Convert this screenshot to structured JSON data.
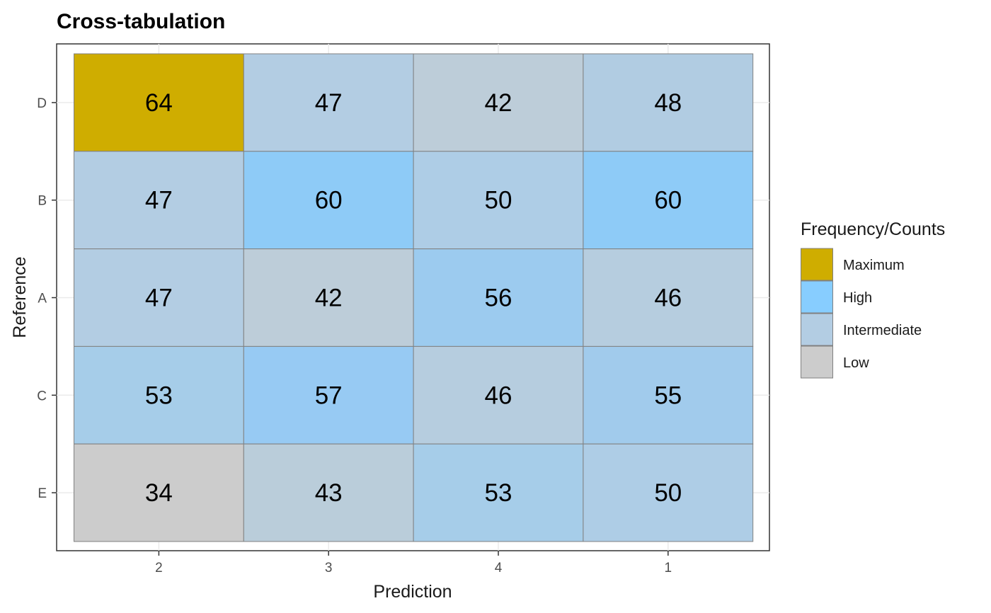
{
  "chart_data": {
    "type": "heatmap",
    "title": "Cross-tabulation",
    "xlabel": "Prediction",
    "ylabel": "Reference",
    "x_categories": [
      "2",
      "3",
      "4",
      "1"
    ],
    "y_categories": [
      "D",
      "B",
      "A",
      "C",
      "E"
    ],
    "values": [
      [
        64,
        47,
        42,
        48
      ],
      [
        47,
        60,
        50,
        60
      ],
      [
        47,
        42,
        56,
        46
      ],
      [
        53,
        57,
        46,
        55
      ],
      [
        34,
        43,
        53,
        50
      ]
    ],
    "cell_colors": [
      [
        "#cfad00",
        "#b3cde3",
        "#bdcdd9",
        "#b1cce2"
      ],
      [
        "#b3cde3",
        "#8ecbf7",
        "#aecde6",
        "#8ecbf7"
      ],
      [
        "#b3cde3",
        "#bdcdd9",
        "#9ccbef",
        "#b6cddf"
      ],
      [
        "#a6cde9",
        "#97caf3",
        "#b6cddf",
        "#a1cbec"
      ],
      [
        "#cccccc",
        "#bacdda",
        "#a6cde9",
        "#aecde6"
      ]
    ],
    "legend": {
      "title": "Frequency/Counts",
      "entries": [
        {
          "label": "Maximum",
          "color": "#cfad00"
        },
        {
          "label": "High",
          "color": "#87cdff"
        },
        {
          "label": "Intermediate",
          "color": "#b3cde3"
        },
        {
          "label": "Low",
          "color": "#cccccc"
        }
      ]
    },
    "grid": true
  }
}
